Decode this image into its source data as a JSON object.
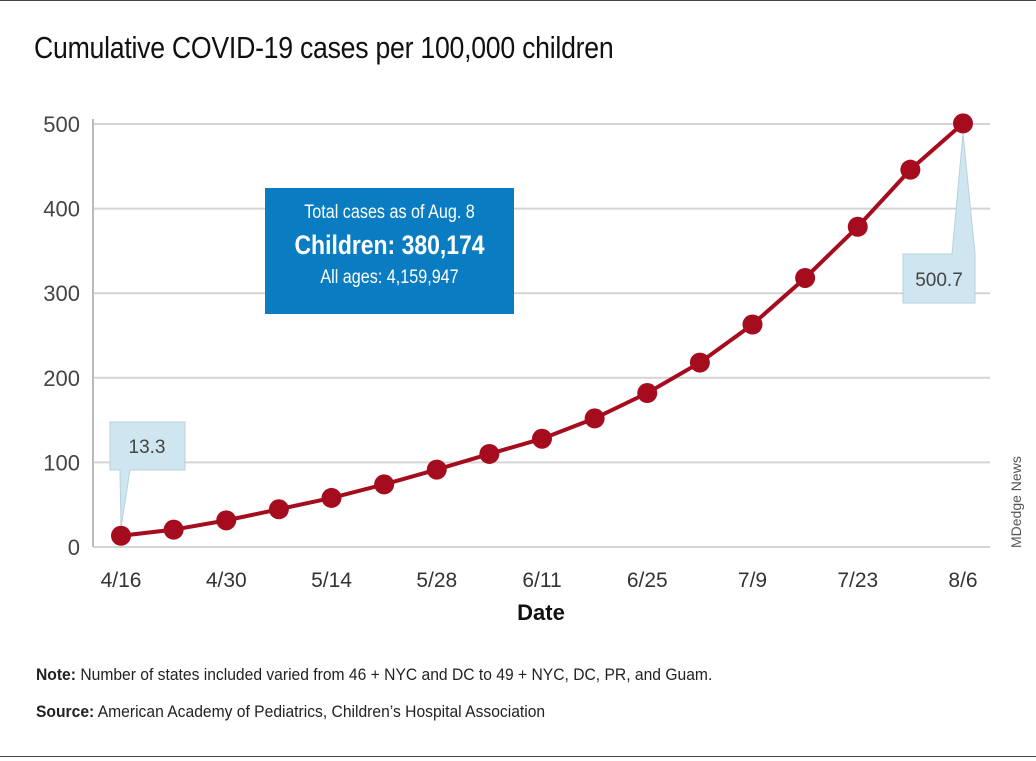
{
  "chart_data": {
    "type": "line",
    "title": "Cumulative COVID-19 cases per 100,000 children",
    "xlabel": "Date",
    "ylabel": "",
    "ylim": [
      0,
      500
    ],
    "yticks": [
      "0",
      "100",
      "200",
      "300",
      "400",
      "500"
    ],
    "xticks": [
      "4/16",
      "4/30",
      "5/14",
      "5/28",
      "6/11",
      "6/25",
      "7/9",
      "7/23",
      "8/6"
    ],
    "grid": true,
    "x": [
      "4/16",
      "4/23",
      "4/30",
      "5/7",
      "5/14",
      "5/21",
      "5/28",
      "6/4",
      "6/11",
      "6/18",
      "6/25",
      "7/2",
      "7/9",
      "7/16",
      "7/23",
      "7/30",
      "8/6"
    ],
    "values": [
      13.3,
      20.5,
      31.5,
      44.6,
      58,
      74,
      91.5,
      110,
      128,
      152,
      182,
      218,
      263,
      318,
      378.5,
      446,
      500.7
    ],
    "line_color": "#a50d1f",
    "callouts": [
      {
        "label": "13.3",
        "point": "4/16"
      },
      {
        "label": "500.7",
        "point": "8/6"
      }
    ],
    "callout_color": "#cfe5ef"
  },
  "infobox": {
    "line1": "Total cases as of Aug. 8",
    "line2": "Children: 380,174",
    "line3": "All ages: 4,159,947",
    "color": "#0a7cc2"
  },
  "note_label": "Note:",
  "note_text": " Number of states included varied from 46 + NYC and DC to 49 + NYC, DC, PR, and Guam.",
  "source_label": "Source:",
  "source_text": " American Academy of Pediatrics, Children’s Hospital Association",
  "watermark": "MDedge News"
}
